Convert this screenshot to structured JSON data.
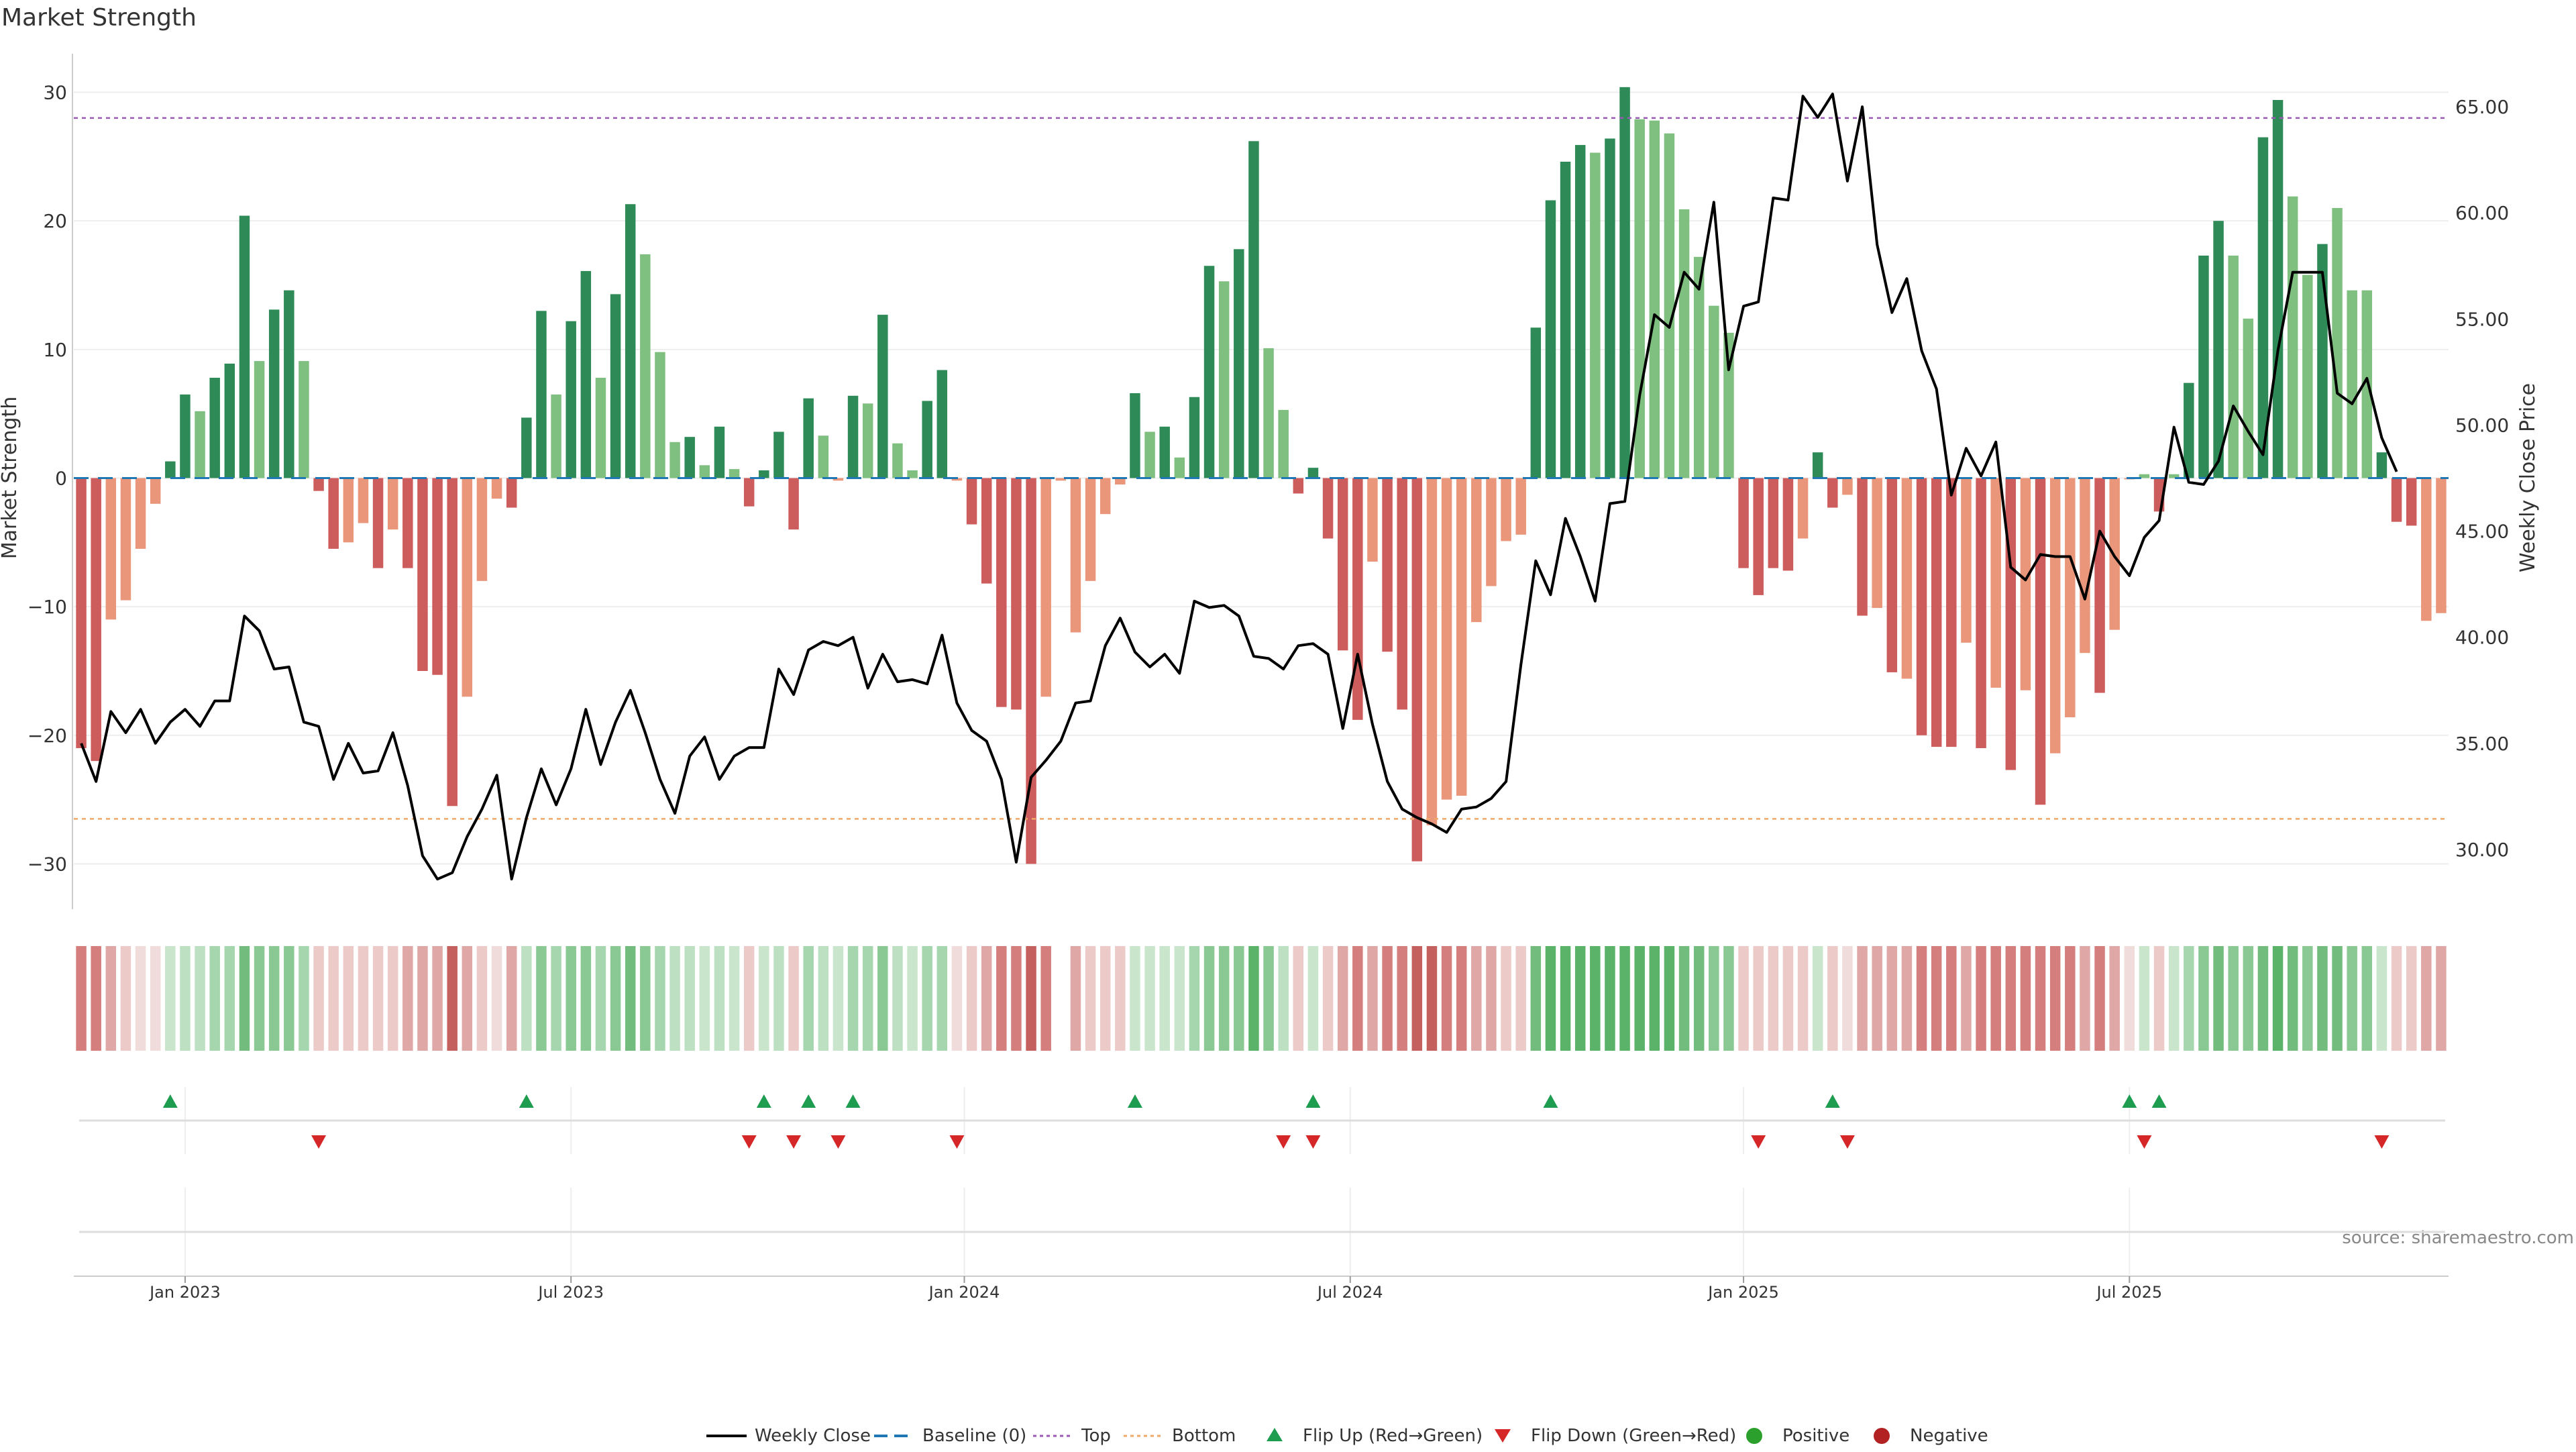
{
  "chart_data": {
    "type": "bar",
    "title": "Market Strength",
    "ylabel_left": "Market Strength",
    "ylabel_right": "Weekly Close Price",
    "ylim_left": [
      -33,
      33
    ],
    "ylim_right": [
      27.5,
      67.5
    ],
    "yticks_left": [
      30,
      20,
      10,
      0,
      -10,
      -20,
      -30
    ],
    "yticks_right": [
      "65.00",
      "60.00",
      "55.00",
      "50.00",
      "45.00",
      "40.00",
      "35.00",
      "30.00"
    ],
    "top_level": 28,
    "bottom_level": -26.5,
    "x_tick_labels": [
      "Jan 2023",
      "Jul 2023",
      "Jan 2024",
      "Jul 2024",
      "Jan 2025",
      "Jul 2025"
    ],
    "strength": [
      -21,
      -22,
      -11,
      -9.5,
      -5.5,
      -2,
      1.3,
      6.5,
      5.2,
      7.8,
      8.9,
      20.4,
      9.1,
      13.1,
      14.6,
      9.1,
      -1,
      -5.5,
      -5,
      -3.5,
      -7,
      -4,
      -7,
      -15,
      -15.3,
      -25.5,
      -17,
      -8,
      -1.6,
      -2.3,
      4.7,
      13,
      6.5,
      12.2,
      16.1,
      7.8,
      14.3,
      21.3,
      17.4,
      9.8,
      2.8,
      3.2,
      1,
      4,
      0.7,
      -2.2,
      0.6,
      3.6,
      -4,
      6.2,
      3.3,
      -0.2,
      6.4,
      5.8,
      12.7,
      2.7,
      0.6,
      6,
      8.4,
      -0.2,
      -3.6,
      -8.2,
      -17.8,
      -18,
      -30,
      -17,
      -0.2,
      -12,
      -8,
      -2.8,
      -0.5,
      6.6,
      3.6,
      4,
      1.6,
      6.3,
      16.5,
      15.3,
      17.8,
      26.2,
      10.1,
      5.3,
      -1.2,
      0.8,
      -4.7,
      -13.4,
      -18.8,
      -6.5,
      -13.5,
      -18,
      -29.8,
      -27,
      -25,
      -24.7,
      -11.2,
      -8.4,
      -4.9,
      -4.4,
      11.7,
      21.6,
      24.6,
      25.9,
      25.3,
      26.4,
      30.4,
      27.9,
      27.8,
      26.8,
      20.9,
      17.2,
      13.4,
      11.3,
      -7,
      -9.1,
      -7,
      -7.2,
      -4.7,
      2,
      -2.3,
      -1.3,
      -10.7,
      -10.1,
      -15.1,
      -15.6,
      -20,
      -20.9,
      -20.9,
      -12.8,
      -21,
      -16.3,
      -22.7,
      -16.5,
      -25.4,
      -21.4,
      -18.6,
      -13.6,
      -16.7,
      -11.8,
      -0.1,
      0.3,
      -2.6,
      0.3,
      7.4,
      17.3,
      20,
      17.3,
      12.4,
      26.5,
      29.4,
      21.9,
      15.8,
      18.2,
      21,
      14.6,
      14.6,
      2,
      -3.4,
      -3.7,
      -11.1,
      -10.5
    ],
    "strength_flags": [
      "d",
      "d",
      "l",
      "l",
      "l",
      "l",
      "d",
      "d",
      "l",
      "d",
      "d",
      "d",
      "l",
      "d",
      "d",
      "l",
      "d",
      "d",
      "l",
      "l",
      "d",
      "l",
      "d",
      "d",
      "d",
      "d",
      "l",
      "l",
      "l",
      "d",
      "d",
      "d",
      "l",
      "d",
      "d",
      "l",
      "d",
      "d",
      "l",
      "l",
      "l",
      "d",
      "l",
      "d",
      "l",
      "d",
      "d",
      "d",
      "d",
      "d",
      "l",
      "l",
      "d",
      "l",
      "d",
      "l",
      "l",
      "d",
      "d",
      "l",
      "d",
      "d",
      "d",
      "d",
      "d",
      "l",
      "l",
      "l",
      "l",
      "l",
      "l",
      "d",
      "l",
      "d",
      "l",
      "d",
      "d",
      "l",
      "d",
      "d",
      "l",
      "l",
      "d",
      "d",
      "d",
      "d",
      "d",
      "l",
      "d",
      "d",
      "d",
      "l",
      "l",
      "l",
      "l",
      "l",
      "l",
      "l",
      "d",
      "d",
      "d",
      "d",
      "l",
      "d",
      "d",
      "l",
      "l",
      "l",
      "l",
      "l",
      "l",
      "l",
      "d",
      "d",
      "d",
      "d",
      "l",
      "d",
      "d",
      "l",
      "d",
      "l",
      "d",
      "l",
      "d",
      "d",
      "d",
      "l",
      "d",
      "l",
      "d",
      "l",
      "d",
      "l",
      "l",
      "l",
      "d",
      "l",
      "l",
      "l",
      "d",
      "l",
      "d",
      "d",
      "d",
      "l",
      "l",
      "d",
      "d",
      "l",
      "l",
      "d",
      "l",
      "l",
      "l",
      "d",
      "d",
      "d",
      "l"
    ],
    "weekly_close": [
      35,
      33.2,
      36.5,
      35.5,
      36.6,
      35,
      36,
      36.6,
      35.8,
      37,
      37,
      41,
      40.3,
      38.5,
      38.6,
      36,
      35.8,
      33.3,
      35,
      33.6,
      33.7,
      35.5,
      33,
      29.7,
      28.6,
      28.9,
      30.6,
      31.9,
      33.5,
      28.6,
      31.5,
      33.8,
      32.1,
      33.8,
      36.6,
      34,
      36,
      37.5,
      35.5,
      33.3,
      31.7,
      34.4,
      35.3,
      33.3,
      34.4,
      34.8,
      34.8,
      38.5,
      37.3,
      39.4,
      39.8,
      39.6,
      40,
      37.6,
      39.2,
      37.9,
      38,
      37.8,
      40.1,
      36.9,
      35.6,
      35.1,
      33.3,
      29.4,
      33.4,
      34.2,
      35.1,
      36.9,
      37,
      39.6,
      40.9,
      39.3,
      38.6,
      39.2,
      38.3,
      41.7,
      41.4,
      41.5,
      41,
      39.1,
      39,
      38.5,
      39.6,
      39.7,
      39.2,
      35.7,
      39.2,
      35.9,
      33.2,
      31.9,
      31.5,
      31.2,
      30.8,
      31.9,
      32,
      32.4,
      33.2,
      38.7,
      43.6,
      42,
      45.6,
      43.8,
      41.7,
      46.3,
      46.4,
      51.4,
      55.2,
      54.6,
      57.2,
      56.4,
      60.5,
      52.6,
      55.6,
      55.8,
      60.7,
      60.6,
      65.5,
      64.5,
      65.6,
      61.5,
      65,
      58.5,
      55.3,
      56.9,
      53.5,
      51.7,
      46.7,
      48.9,
      47.6,
      49.2,
      43.3,
      42.7,
      43.9,
      43.8,
      43.8,
      41.8,
      45,
      43.8,
      42.9,
      44.7,
      45.5,
      49.9,
      47.3,
      47.2,
      48.3,
      50.9,
      49.7,
      48.6,
      53.5,
      57.2,
      57.2,
      57.2,
      51.5,
      51,
      52.2,
      49.4,
      47.8
    ],
    "heat_colors": [
      "#d47f7d",
      "#d47f7d",
      "#dfa7a5",
      "#ebcac8",
      "#f0dcdb",
      "#f0dcdb",
      "#c9e5cc",
      "#bde0c2",
      "#bde0c2",
      "#a5d6ad",
      "#a5d6ad",
      "#72bd7d",
      "#8ac993",
      "#8ac993",
      "#8ac993",
      "#a5d6ad",
      "#ebcac8",
      "#ebcac8",
      "#ebcac8",
      "#ebcac8",
      "#ebcac8",
      "#ebcac8",
      "#dfa7a5",
      "#dfa7a5",
      "#dfa7a5",
      "#c4615e",
      "#dfa7a5",
      "#ebcac8",
      "#f0dcdb",
      "#dfa7a5",
      "#bde0c2",
      "#8ac993",
      "#a5d6ad",
      "#8ac993",
      "#8ac993",
      "#a5d6ad",
      "#8ac993",
      "#72bd7d",
      "#8ac993",
      "#a5d6ad",
      "#bde0c2",
      "#bde0c2",
      "#c9e5cc",
      "#bde0c2",
      "#c9e5cc",
      "#ebcac8",
      "#c9e5cc",
      "#bde0c2",
      "#ebcac8",
      "#a5d6ad",
      "#bde0c2",
      "#c9e5cc",
      "#a5d6ad",
      "#a5d6ad",
      "#8ac993",
      "#bde0c2",
      "#c9e5cc",
      "#a5d6ad",
      "#a5d6ad",
      "#f0dcdb",
      "#ebcac8",
      "#dfa7a5",
      "#d47f7d",
      "#d47f7d",
      "#c4615e",
      "#d47f7d",
      "#ffffff",
      "#dfa7a5",
      "#ebcac8",
      "#ebcac8",
      "#ebcac8",
      "#c9e5cc",
      "#c9e5cc",
      "#c9e5cc",
      "#c9e5cc",
      "#a5d6ad",
      "#8ac993",
      "#8ac993",
      "#8ac993",
      "#5bb36a",
      "#8ac993",
      "#bde0c2",
      "#ebcac8",
      "#c9e5cc",
      "#ebcac8",
      "#dfa7a5",
      "#d47f7d",
      "#dfa7a5",
      "#d47f7d",
      "#d47f7d",
      "#c4615e",
      "#c4615e",
      "#d47f7d",
      "#d47f7d",
      "#dfa7a5",
      "#dfa7a5",
      "#ebcac8",
      "#ebcac8",
      "#72bd7d",
      "#5bb36a",
      "#5bb36a",
      "#5bb36a",
      "#5bb36a",
      "#5bb36a",
      "#5bb36a",
      "#5bb36a",
      "#5bb36a",
      "#5bb36a",
      "#72bd7d",
      "#72bd7d",
      "#8ac993",
      "#8ac993",
      "#ebcac8",
      "#ebcac8",
      "#ebcac8",
      "#ebcac8",
      "#ebcac8",
      "#c9e5cc",
      "#ebcac8",
      "#f0dcdb",
      "#dfa7a5",
      "#dfa7a5",
      "#dfa7a5",
      "#dfa7a5",
      "#d47f7d",
      "#d47f7d",
      "#d47f7d",
      "#dfa7a5",
      "#d47f7d",
      "#d47f7d",
      "#d47f7d",
      "#d47f7d",
      "#d47f7d",
      "#d47f7d",
      "#d47f7d",
      "#dfa7a5",
      "#d47f7d",
      "#dfa7a5",
      "#f0dcdb",
      "#c9e5cc",
      "#ebcac8",
      "#c9e5cc",
      "#a5d6ad",
      "#8ac993",
      "#72bd7d",
      "#8ac993",
      "#8ac993",
      "#72bd7d",
      "#5bb36a",
      "#72bd7d",
      "#8ac993",
      "#72bd7d",
      "#72bd7d",
      "#8ac993",
      "#8ac993",
      "#c9e5cc",
      "#ebcac8",
      "#ebcac8",
      "#dfa7a5",
      "#dfa7a5"
    ],
    "heat_gap_index": 66,
    "flip_up_indices": [
      6,
      30,
      46,
      49,
      52,
      71,
      83,
      99,
      118,
      138,
      140
    ],
    "flip_down_indices": [
      16,
      45,
      48,
      51,
      59,
      81,
      83,
      113,
      119,
      139,
      155
    ],
    "positive_label": "Positive",
    "negative_label": "Negative",
    "source": "source: sharemaestro.com",
    "legend": [
      {
        "key": "weekly",
        "label": "Weekly Close"
      },
      {
        "key": "baseline",
        "label": "Baseline (0)"
      },
      {
        "key": "top",
        "label": "Top"
      },
      {
        "key": "bottom",
        "label": "Bottom"
      },
      {
        "key": "flipup",
        "label": "Flip Up (Red→Green)"
      },
      {
        "key": "flipdown",
        "label": "Flip Down (Green→Red)"
      },
      {
        "key": "positive",
        "label": "Positive"
      },
      {
        "key": "negative",
        "label": "Negative"
      }
    ],
    "colors": {
      "pos_dark": "#2e8b57",
      "pos_light": "#7fbf7f",
      "neg_dark": "#cd5c5c",
      "neg_light": "#e9967a",
      "line": "#000000",
      "baseline": "#1f77b4",
      "top": "#9b59b6",
      "bottom": "#f0a868",
      "flip_up": "#1e9c50",
      "flip_down": "#d62728",
      "positive_dot": "#2ca02c",
      "negative_dot": "#b22222",
      "grid": "#eeeeee",
      "axis_text": "#333333",
      "source_text": "#888888"
    }
  }
}
